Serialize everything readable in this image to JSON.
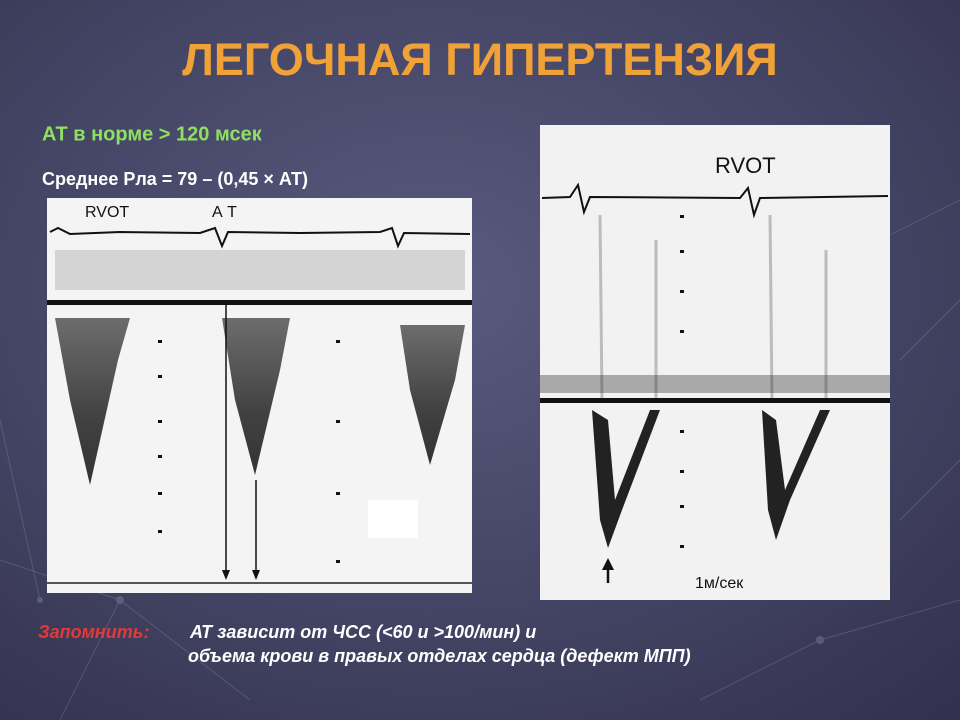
{
  "title": "ЛЕГОЧНАЯ ГИПЕРТЕНЗИЯ",
  "norm": "АТ в норме > 120 мсек",
  "formula": "Среднее Рла = 79 – (0,45 × АТ)",
  "left_image": {
    "labels": [
      "RVOT",
      "А Т"
    ]
  },
  "right_image": {
    "labels": [
      "RVOT",
      "1м/сек"
    ]
  },
  "note": {
    "label": "Запомнить:",
    "text_1": "АТ зависит от ЧСС (<60 и >100/мин) и",
    "text_2": "объема крови в правых отделах сердца (дефект МПП)"
  }
}
